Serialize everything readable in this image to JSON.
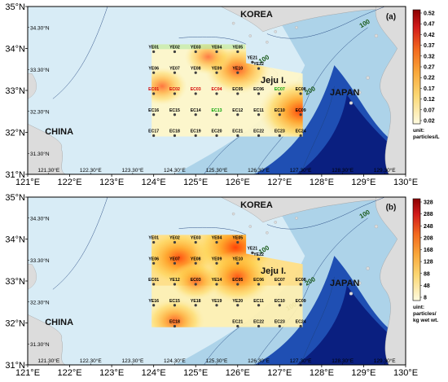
{
  "panels": [
    {
      "id": "a",
      "panel_label": "(a)",
      "unit_label_line1": "unit:",
      "unit_label_line2": "particles/L",
      "colorbar_ticks": [
        "0.52",
        "0.47",
        "0.42",
        "0.37",
        "0.32",
        "0.27",
        "0.22",
        "0.17",
        "0.12",
        "0.07",
        "0.02"
      ],
      "stations": [
        {
          "label": "YE01",
          "lon": 124.0,
          "lat": 34.0,
          "color": "#000000"
        },
        {
          "label": "YE02",
          "lon": 124.5,
          "lat": 34.0,
          "color": "#000000"
        },
        {
          "label": "YE03",
          "lon": 125.0,
          "lat": 34.0,
          "color": "#000000"
        },
        {
          "label": "YE04",
          "lon": 125.5,
          "lat": 34.0,
          "color": "#000000"
        },
        {
          "label": "YE05",
          "lon": 126.0,
          "lat": 34.0,
          "color": "#000000"
        },
        {
          "label": "YE21",
          "lon": 126.35,
          "lat": 33.75,
          "color": "#000000"
        },
        {
          "label": "YE22",
          "lon": 126.5,
          "lat": 33.6,
          "color": "#000000"
        },
        {
          "label": "YE06",
          "lon": 124.0,
          "lat": 33.5,
          "color": "#000000"
        },
        {
          "label": "YE07",
          "lon": 124.5,
          "lat": 33.5,
          "color": "#000000"
        },
        {
          "label": "YE08",
          "lon": 125.0,
          "lat": 33.5,
          "color": "#000000"
        },
        {
          "label": "YE09",
          "lon": 125.5,
          "lat": 33.5,
          "color": "#000000"
        },
        {
          "label": "YE10",
          "lon": 126.0,
          "lat": 33.5,
          "color": "#000000"
        },
        {
          "label": "EC01",
          "lon": 124.0,
          "lat": 33.0,
          "color": "#d40000"
        },
        {
          "label": "EC02",
          "lon": 124.5,
          "lat": 33.0,
          "color": "#d40000"
        },
        {
          "label": "EC03",
          "lon": 125.0,
          "lat": 33.0,
          "color": "#d40000"
        },
        {
          "label": "EC04",
          "lon": 125.5,
          "lat": 33.0,
          "color": "#d40000"
        },
        {
          "label": "EC05",
          "lon": 126.0,
          "lat": 33.0,
          "color": "#000000"
        },
        {
          "label": "EC06",
          "lon": 126.5,
          "lat": 33.0,
          "color": "#000000"
        },
        {
          "label": "EC07",
          "lon": 127.0,
          "lat": 33.0,
          "color": "#00a000"
        },
        {
          "label": "EC08",
          "lon": 127.5,
          "lat": 33.0,
          "color": "#000000"
        },
        {
          "label": "EC16",
          "lon": 124.0,
          "lat": 32.5,
          "color": "#000000"
        },
        {
          "label": "EC15",
          "lon": 124.5,
          "lat": 32.5,
          "color": "#000000"
        },
        {
          "label": "EC14",
          "lon": 125.0,
          "lat": 32.5,
          "color": "#000000"
        },
        {
          "label": "EC13",
          "lon": 125.5,
          "lat": 32.5,
          "color": "#00a000"
        },
        {
          "label": "EC12",
          "lon": 126.0,
          "lat": 32.5,
          "color": "#000000"
        },
        {
          "label": "EC11",
          "lon": 126.5,
          "lat": 32.5,
          "color": "#000000"
        },
        {
          "label": "EC10",
          "lon": 127.0,
          "lat": 32.5,
          "color": "#000000"
        },
        {
          "label": "EC09",
          "lon": 127.5,
          "lat": 32.5,
          "color": "#000000"
        },
        {
          "label": "EC17",
          "lon": 124.0,
          "lat": 32.0,
          "color": "#000000"
        },
        {
          "label": "EC18",
          "lon": 124.5,
          "lat": 32.0,
          "color": "#000000"
        },
        {
          "label": "EC19",
          "lon": 125.0,
          "lat": 32.0,
          "color": "#000000"
        },
        {
          "label": "EC20",
          "lon": 125.5,
          "lat": 32.0,
          "color": "#000000"
        },
        {
          "label": "EC21",
          "lon": 126.0,
          "lat": 32.0,
          "color": "#000000"
        },
        {
          "label": "EC22",
          "lon": 126.5,
          "lat": 32.0,
          "color": "#000000"
        },
        {
          "label": "EC23",
          "lon": 127.0,
          "lat": 32.0,
          "color": "#000000"
        },
        {
          "label": "EC24",
          "lon": 127.5,
          "lat": 32.0,
          "color": "#000000"
        }
      ],
      "hotspots": [
        {
          "lon": 127.5,
          "lat": 32.5,
          "intensity": 1.0
        },
        {
          "lon": 126.0,
          "lat": 33.5,
          "intensity": 0.7
        },
        {
          "lon": 124.2,
          "lat": 33.1,
          "intensity": 0.45
        },
        {
          "lon": 125.3,
          "lat": 33.8,
          "intensity": 0.4
        }
      ]
    },
    {
      "id": "b",
      "panel_label": "(b)",
      "unit_label_line1": "uint:",
      "unit_label_line2": "particles/",
      "unit_label_line3": "kg wet wt.",
      "colorbar_ticks": [
        "328",
        "288",
        "248",
        "208",
        "168",
        "128",
        "88",
        "48",
        "8"
      ],
      "stations": [
        {
          "label": "YE01",
          "lon": 124.0,
          "lat": 34.0,
          "color": "#000000"
        },
        {
          "label": "YE02",
          "lon": 124.5,
          "lat": 34.0,
          "color": "#000000"
        },
        {
          "label": "YE03",
          "lon": 125.0,
          "lat": 34.0,
          "color": "#000000"
        },
        {
          "label": "YE04",
          "lon": 125.5,
          "lat": 34.0,
          "color": "#000000"
        },
        {
          "label": "YE05",
          "lon": 126.0,
          "lat": 34.0,
          "color": "#000000"
        },
        {
          "label": "YE21",
          "lon": 126.35,
          "lat": 33.75,
          "color": "#000000"
        },
        {
          "label": "YE22",
          "lon": 126.5,
          "lat": 33.6,
          "color": "#000000"
        },
        {
          "label": "YE06",
          "lon": 124.0,
          "lat": 33.5,
          "color": "#000000"
        },
        {
          "label": "YE07",
          "lon": 124.5,
          "lat": 33.5,
          "color": "#000000"
        },
        {
          "label": "YE08",
          "lon": 125.0,
          "lat": 33.5,
          "color": "#000000"
        },
        {
          "label": "YE09",
          "lon": 125.5,
          "lat": 33.5,
          "color": "#000000"
        },
        {
          "label": "YE10",
          "lon": 126.0,
          "lat": 33.5,
          "color": "#000000"
        },
        {
          "label": "EC01",
          "lon": 124.0,
          "lat": 33.0,
          "color": "#000000"
        },
        {
          "label": "YE12",
          "lon": 124.5,
          "lat": 33.0,
          "color": "#000000"
        },
        {
          "label": "EC03",
          "lon": 125.0,
          "lat": 33.0,
          "color": "#000000"
        },
        {
          "label": "YE14",
          "lon": 125.5,
          "lat": 33.0,
          "color": "#000000"
        },
        {
          "label": "EC05",
          "lon": 126.0,
          "lat": 33.0,
          "color": "#000000"
        },
        {
          "label": "EC06",
          "lon": 126.5,
          "lat": 33.0,
          "color": "#000000"
        },
        {
          "label": "EC07",
          "lon": 127.0,
          "lat": 33.0,
          "color": "#000000"
        },
        {
          "label": "EC08",
          "lon": 127.5,
          "lat": 33.0,
          "color": "#000000"
        },
        {
          "label": "YE16",
          "lon": 124.0,
          "lat": 32.5,
          "color": "#000000"
        },
        {
          "label": "EC15",
          "lon": 124.5,
          "lat": 32.5,
          "color": "#000000"
        },
        {
          "label": "YE18",
          "lon": 125.0,
          "lat": 32.5,
          "color": "#000000"
        },
        {
          "label": "YE19",
          "lon": 125.5,
          "lat": 32.5,
          "color": "#000000"
        },
        {
          "label": "YE20",
          "lon": 126.0,
          "lat": 32.5,
          "color": "#000000"
        },
        {
          "label": "EC11",
          "lon": 126.5,
          "lat": 32.5,
          "color": "#000000"
        },
        {
          "label": "EC10",
          "lon": 127.0,
          "lat": 32.5,
          "color": "#000000"
        },
        {
          "label": "EC09",
          "lon": 127.5,
          "lat": 32.5,
          "color": "#000000"
        },
        {
          "label": "EC18",
          "lon": 124.5,
          "lat": 32.0,
          "color": "#000000"
        },
        {
          "label": "EC21",
          "lon": 126.0,
          "lat": 32.0,
          "color": "#000000"
        },
        {
          "label": "EC22",
          "lon": 126.5,
          "lat": 32.0,
          "color": "#000000"
        },
        {
          "label": "EC23",
          "lon": 127.0,
          "lat": 32.0,
          "color": "#000000"
        },
        {
          "label": "EC24",
          "lon": 127.5,
          "lat": 32.0,
          "color": "#000000"
        }
      ],
      "hotspots": [
        {
          "lon": 124.6,
          "lat": 33.55,
          "intensity": 0.85
        },
        {
          "lon": 125.95,
          "lat": 33.8,
          "intensity": 1.0
        },
        {
          "lon": 126.0,
          "lat": 33.1,
          "intensity": 0.75
        },
        {
          "lon": 124.5,
          "lat": 32.05,
          "intensity": 0.6
        },
        {
          "lon": 125.0,
          "lat": 33.0,
          "intensity": 0.45
        }
      ]
    }
  ],
  "lat_ticks_major": [
    "35°N",
    "34°N",
    "33°N",
    "32°N",
    "31°N"
  ],
  "lat_ticks_minor": [
    "34.30°N",
    "33.30°N",
    "32.30°N",
    "31.30°N"
  ],
  "lon_ticks_major": [
    "121°E",
    "122°E",
    "123°E",
    "124°E",
    "125°E",
    "126°E",
    "127°E",
    "128°E",
    "129°E",
    "130°E"
  ],
  "lon_ticks_minor": [
    "121.30°E",
    "122.30°E",
    "123.30°E",
    "124.30°E",
    "125.30°E",
    "126.30°E",
    "127.30°E",
    "128.30°E",
    "129.30°E"
  ],
  "place_labels": {
    "korea": "KOREA",
    "japan": "JAPAN",
    "china": "CHINA",
    "jeju": "Jeju I."
  },
  "contour_labels": [
    "100",
    "100",
    "100",
    "200"
  ],
  "colors": {
    "land": "#dcdcdc",
    "sea_light": "#d8ecf6",
    "sea_mid": "#9fcbe4",
    "sea_deep": "#1f4fb3",
    "sea_deepest": "#0a1f80"
  }
}
